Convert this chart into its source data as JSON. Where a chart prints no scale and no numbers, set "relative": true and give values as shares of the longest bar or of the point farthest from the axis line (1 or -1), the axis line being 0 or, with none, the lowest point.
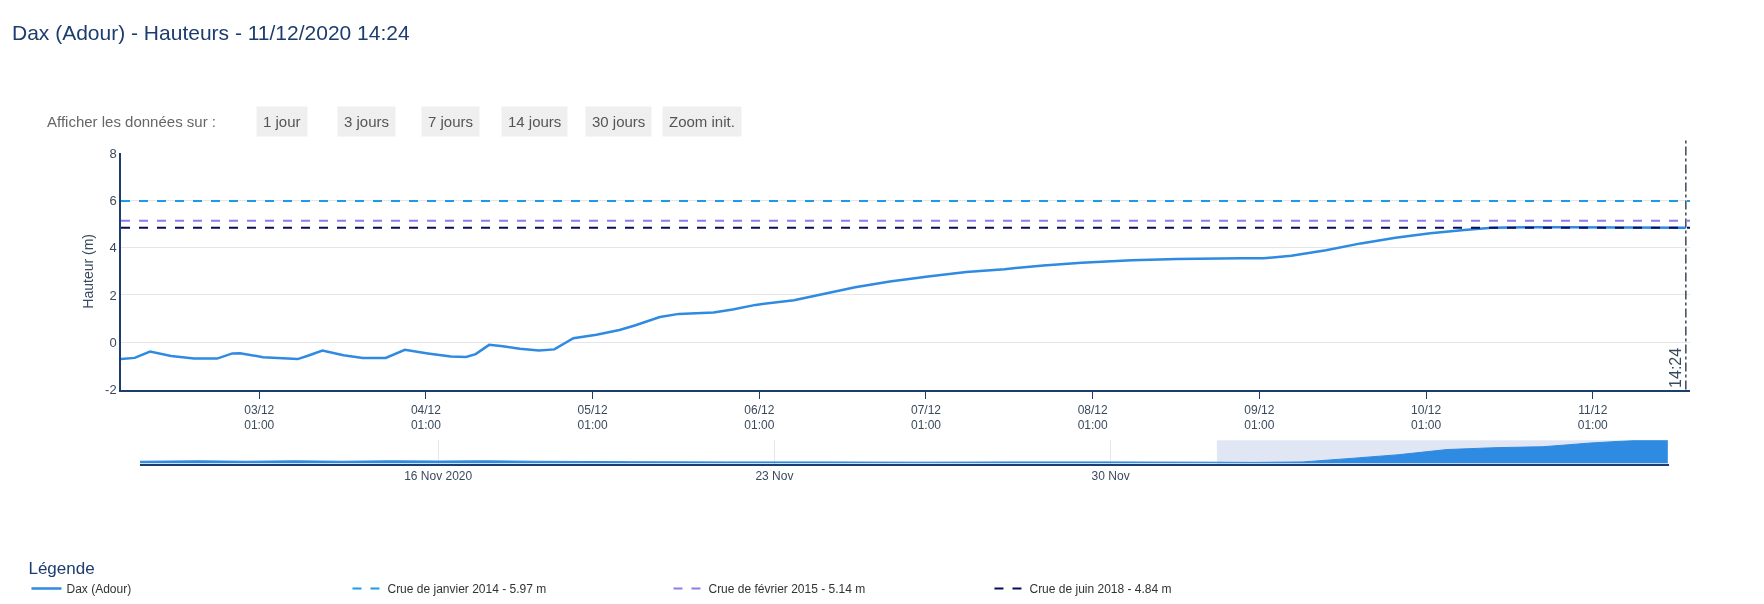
{
  "chart_data": [
    {
      "type": "line",
      "title": "Dax (Adour) - Hauteurs - 11/12/2020 14:24",
      "ylabel": "Hauteur (m)",
      "legend_title": "Légende",
      "legend": "bottom",
      "grid": "y",
      "line_style": "solid",
      "annotations": [
        "Afficher les données sur :",
        "1 jour",
        "3 jours",
        "7 jours",
        "14 jours",
        "30 jours",
        "Zoom init."
      ],
      "xlim": [
        "2020-12-02T05:06",
        "2020-12-11T15:00"
      ],
      "xticks": [
        {
          "value": "2020-12-03T01:00",
          "label": "03/12\n01:00"
        },
        {
          "value": "2020-12-04T01:00",
          "label": "04/12\n01:00"
        },
        {
          "value": "2020-12-05T01:00",
          "label": "05/12\n01:00"
        },
        {
          "value": "2020-12-06T01:00",
          "label": "06/12\n01:00"
        },
        {
          "value": "2020-12-07T01:00",
          "label": "07/12\n01:00"
        },
        {
          "value": "2020-12-08T01:00",
          "label": "08/12\n01:00"
        },
        {
          "value": "2020-12-09T01:00",
          "label": "09/12\n01:00"
        },
        {
          "value": "2020-12-10T01:00",
          "label": "10/12\n01:00"
        },
        {
          "value": "2020-12-11T01:00",
          "label": "11/12\n01:00"
        }
      ],
      "ylim": [
        -2,
        8
      ],
      "yticks": [
        -2,
        0,
        2,
        4,
        6,
        8
      ],
      "ref_lines": [
        {
          "axis": "y",
          "value": 5.97,
          "label": "Crue de janvier 2014 - 5.97 m",
          "color": "#1e9be6",
          "line_style": "dashed"
        },
        {
          "axis": "y",
          "value": 5.14,
          "label": "Crue de février 2015 - 5.14 m",
          "color": "#8c7ee8",
          "line_style": "dashed"
        },
        {
          "axis": "y",
          "value": 4.84,
          "label": "Crue de juin 2018 - 4.84 m",
          "color": "#0b0b5c",
          "line_style": "dashed"
        },
        {
          "axis": "x",
          "value": "2020-12-11T14:24",
          "label": "14:24",
          "color": "#3b4a5a",
          "line_style": "dashdot"
        }
      ],
      "series": [
        {
          "name": "Dax (Adour)",
          "color": "#2f8ae2",
          "x": [
            "2020-12-02T05:06",
            "2020-12-02T07:04",
            "2020-12-02T09:17",
            "2020-12-02T12:19",
            "2020-12-02T15:37",
            "2020-12-02T18:56",
            "2020-12-02T21:08",
            "2020-12-02T22:14",
            "2020-12-03T01:33",
            "2020-12-03T06:31",
            "2020-12-03T07:54",
            "2020-12-03T10:06",
            "2020-12-03T13:08",
            "2020-12-03T15:54",
            "2020-12-03T19:13",
            "2020-12-03T21:58",
            "2020-12-04T01:17",
            "2020-12-04T04:35",
            "2020-12-04T06:47",
            "2020-12-04T08:10",
            "2020-12-04T10:06",
            "2020-12-04T11:46",
            "2020-12-04T14:31",
            "2020-12-04T17:17",
            "2020-12-04T19:29",
            "2020-12-04T22:14",
            "2020-12-05T01:33",
            "2020-12-05T04:52",
            "2020-12-05T07:04",
            "2020-12-05T10:41",
            "2020-12-05T13:26",
            "2020-12-05T18:24",
            "2020-12-05T21:10",
            "2020-12-06T00:28",
            "2020-12-06T05:59",
            "2020-12-06T10:24",
            "2020-12-06T14:48",
            "2020-12-06T19:48",
            "2020-12-07T01:18",
            "2020-12-07T06:48",
            "2020-12-07T12:18",
            "2020-12-07T17:54",
            "2020-12-07T23:24",
            "2020-12-08T06:36",
            "2020-12-08T13:12",
            "2020-12-08T22:24",
            "2020-12-09T01:36",
            "2020-12-09T05:36",
            "2020-12-09T10:36",
            "2020-12-09T15:36",
            "2020-12-09T20:36",
            "2020-12-10T01:36",
            "2020-12-10T06:30",
            "2020-12-10T10:30",
            "2020-12-10T15:30",
            "2020-12-10T21:30",
            "2020-12-11T05:00",
            "2020-12-11T14:24"
          ],
          "values": [
            -0.71,
            -0.66,
            -0.39,
            -0.58,
            -0.69,
            -0.69,
            -0.47,
            -0.46,
            -0.63,
            -0.71,
            -0.58,
            -0.35,
            -0.55,
            -0.66,
            -0.66,
            -0.32,
            -0.47,
            -0.6,
            -0.62,
            -0.5,
            -0.11,
            -0.16,
            -0.27,
            -0.35,
            -0.3,
            0.17,
            0.32,
            0.52,
            0.71,
            1.07,
            1.2,
            1.26,
            1.39,
            1.58,
            1.78,
            2.05,
            2.33,
            2.57,
            2.78,
            2.97,
            3.09,
            3.25,
            3.36,
            3.47,
            3.52,
            3.55,
            3.55,
            3.66,
            3.89,
            4.18,
            4.42,
            4.61,
            4.75,
            4.84,
            4.86,
            4.86,
            4.85,
            4.84
          ]
        }
      ]
    },
    {
      "type": "area",
      "relative": true,
      "grid": "x",
      "tick_labels": "x",
      "xlim": [
        "2020-11-09T19:00",
        "2020-12-11T15:00"
      ],
      "xticks": [
        {
          "value": "2020-11-16",
          "label": "16 Nov 2020"
        },
        {
          "value": "2020-11-23",
          "label": "23 Nov"
        },
        {
          "value": "2020-11-30",
          "label": "30 Nov"
        }
      ],
      "bands": [
        {
          "axis": "x",
          "from": "2020-12-02T05:06",
          "to": "2020-12-11T14:24",
          "color": "#ccd6ec"
        }
      ],
      "series": [
        {
          "color": "#2f8ae2",
          "x": [
            "2020-11-09T19:00",
            "2020-11-11",
            "2020-11-12",
            "2020-11-13",
            "2020-11-14",
            "2020-11-15",
            "2020-11-16",
            "2020-11-17",
            "2020-11-18",
            "2020-11-19",
            "2020-11-20",
            "2020-11-22",
            "2020-11-24",
            "2020-11-26",
            "2020-11-28",
            "2020-11-30",
            "2020-12-02",
            "2020-12-03",
            "2020-12-04",
            "2020-12-05",
            "2020-12-06",
            "2020-12-07",
            "2020-12-08",
            "2020-12-09",
            "2020-12-10",
            "2020-12-11",
            "2020-12-11T14:24"
          ],
          "values": [
            0.1,
            0.12,
            0.1,
            0.12,
            0.1,
            0.12,
            0.11,
            0.12,
            0.1,
            0.09,
            0.08,
            0.07,
            0.07,
            0.06,
            0.07,
            0.07,
            0.06,
            0.05,
            0.07,
            0.22,
            0.38,
            0.6,
            0.68,
            0.72,
            0.88,
            1,
            1
          ]
        }
      ]
    }
  ]
}
